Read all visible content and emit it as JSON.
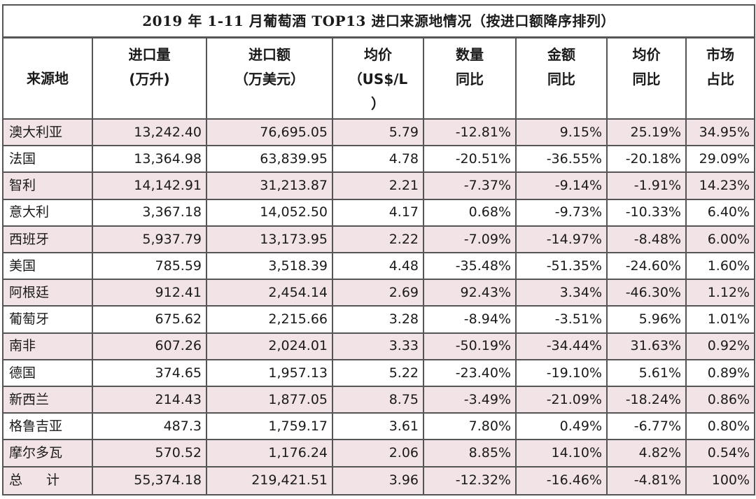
{
  "title": "2019 年 1-11 月葡萄酒 TOP13 进口来源地情况（按进口额降序排列）",
  "headers": [
    {
      "lines": [
        "来源地"
      ]
    },
    {
      "lines": [
        "进口量",
        "(万升)"
      ]
    },
    {
      "lines": [
        "进口额",
        "（万美元）"
      ]
    },
    {
      "lines": [
        "均价",
        "（US$/L",
        "）"
      ]
    },
    {
      "lines": [
        "数量",
        "同比"
      ]
    },
    {
      "lines": [
        "金额",
        "同比"
      ]
    },
    {
      "lines": [
        "均价",
        "同比"
      ]
    },
    {
      "lines": [
        "市场",
        "占比"
      ]
    }
  ],
  "rows": [
    {
      "name": "澳大利亚",
      "volume": "13,242.40",
      "amount": "76,695.05",
      "price": "5.79",
      "vol_yoy": "-12.81%",
      "amt_yoy": "9.15%",
      "price_yoy": "25.19%",
      "share": "34.95%"
    },
    {
      "name": "法国",
      "volume": "13,364.98",
      "amount": "63,839.95",
      "price": "4.78",
      "vol_yoy": "-20.51%",
      "amt_yoy": "-36.55%",
      "price_yoy": "-20.18%",
      "share": "29.09%"
    },
    {
      "name": "智利",
      "volume": "14,142.91",
      "amount": "31,213.87",
      "price": "2.21",
      "vol_yoy": "-7.37%",
      "amt_yoy": "-9.14%",
      "price_yoy": "-1.91%",
      "share": "14.23%"
    },
    {
      "name": "意大利",
      "volume": "3,367.18",
      "amount": "14,052.50",
      "price": "4.17",
      "vol_yoy": "0.68%",
      "amt_yoy": "-9.73%",
      "price_yoy": "-10.33%",
      "share": "6.40%"
    },
    {
      "name": "西班牙",
      "volume": "5,937.79",
      "amount": "13,173.95",
      "price": "2.22",
      "vol_yoy": "-7.09%",
      "amt_yoy": "-14.97%",
      "price_yoy": "-8.48%",
      "share": "6.00%"
    },
    {
      "name": "美国",
      "volume": "785.59",
      "amount": "3,518.39",
      "price": "4.48",
      "vol_yoy": "-35.48%",
      "amt_yoy": "-51.35%",
      "price_yoy": "-24.60%",
      "share": "1.60%"
    },
    {
      "name": "阿根廷",
      "volume": "912.41",
      "amount": "2,454.14",
      "price": "2.69",
      "vol_yoy": "92.43%",
      "amt_yoy": "3.34%",
      "price_yoy": "-46.30%",
      "share": "1.12%"
    },
    {
      "name": "葡萄牙",
      "volume": "675.62",
      "amount": "2,215.66",
      "price": "3.28",
      "vol_yoy": "-8.94%",
      "amt_yoy": "-3.51%",
      "price_yoy": "5.96%",
      "share": "1.01%"
    },
    {
      "name": "南非",
      "volume": "607.26",
      "amount": "2,024.01",
      "price": "3.33",
      "vol_yoy": "-50.19%",
      "amt_yoy": "-34.44%",
      "price_yoy": "31.63%",
      "share": "0.92%"
    },
    {
      "name": "德国",
      "volume": "374.65",
      "amount": "1,957.13",
      "price": "5.22",
      "vol_yoy": "-23.40%",
      "amt_yoy": "-19.10%",
      "price_yoy": "5.61%",
      "share": "0.89%"
    },
    {
      "name": "新西兰",
      "volume": "214.43",
      "amount": "1,877.05",
      "price": "8.75",
      "vol_yoy": "-3.49%",
      "amt_yoy": "-21.09%",
      "price_yoy": "-18.24%",
      "share": "0.86%"
    },
    {
      "name": "格鲁吉亚",
      "volume": "487.3",
      "amount": "1,759.17",
      "price": "3.61",
      "vol_yoy": "7.80%",
      "amt_yoy": "0.49%",
      "price_yoy": "-6.77%",
      "share": "0.80%"
    },
    {
      "name": "摩尔多瓦",
      "volume": "570.52",
      "amount": "1,176.24",
      "price": "2.06",
      "vol_yoy": "8.85%",
      "amt_yoy": "14.10%",
      "price_yoy": "4.82%",
      "share": "0.54%"
    }
  ],
  "total": {
    "name": "总 计",
    "volume": "55,374.18",
    "amount": "219,421.51",
    "price": "3.96",
    "vol_yoy": "-12.32%",
    "amt_yoy": "-16.46%",
    "price_yoy": "-4.81%",
    "share": "100%"
  },
  "colors": {
    "shade": "#f2e4e6",
    "border": "#555555"
  }
}
